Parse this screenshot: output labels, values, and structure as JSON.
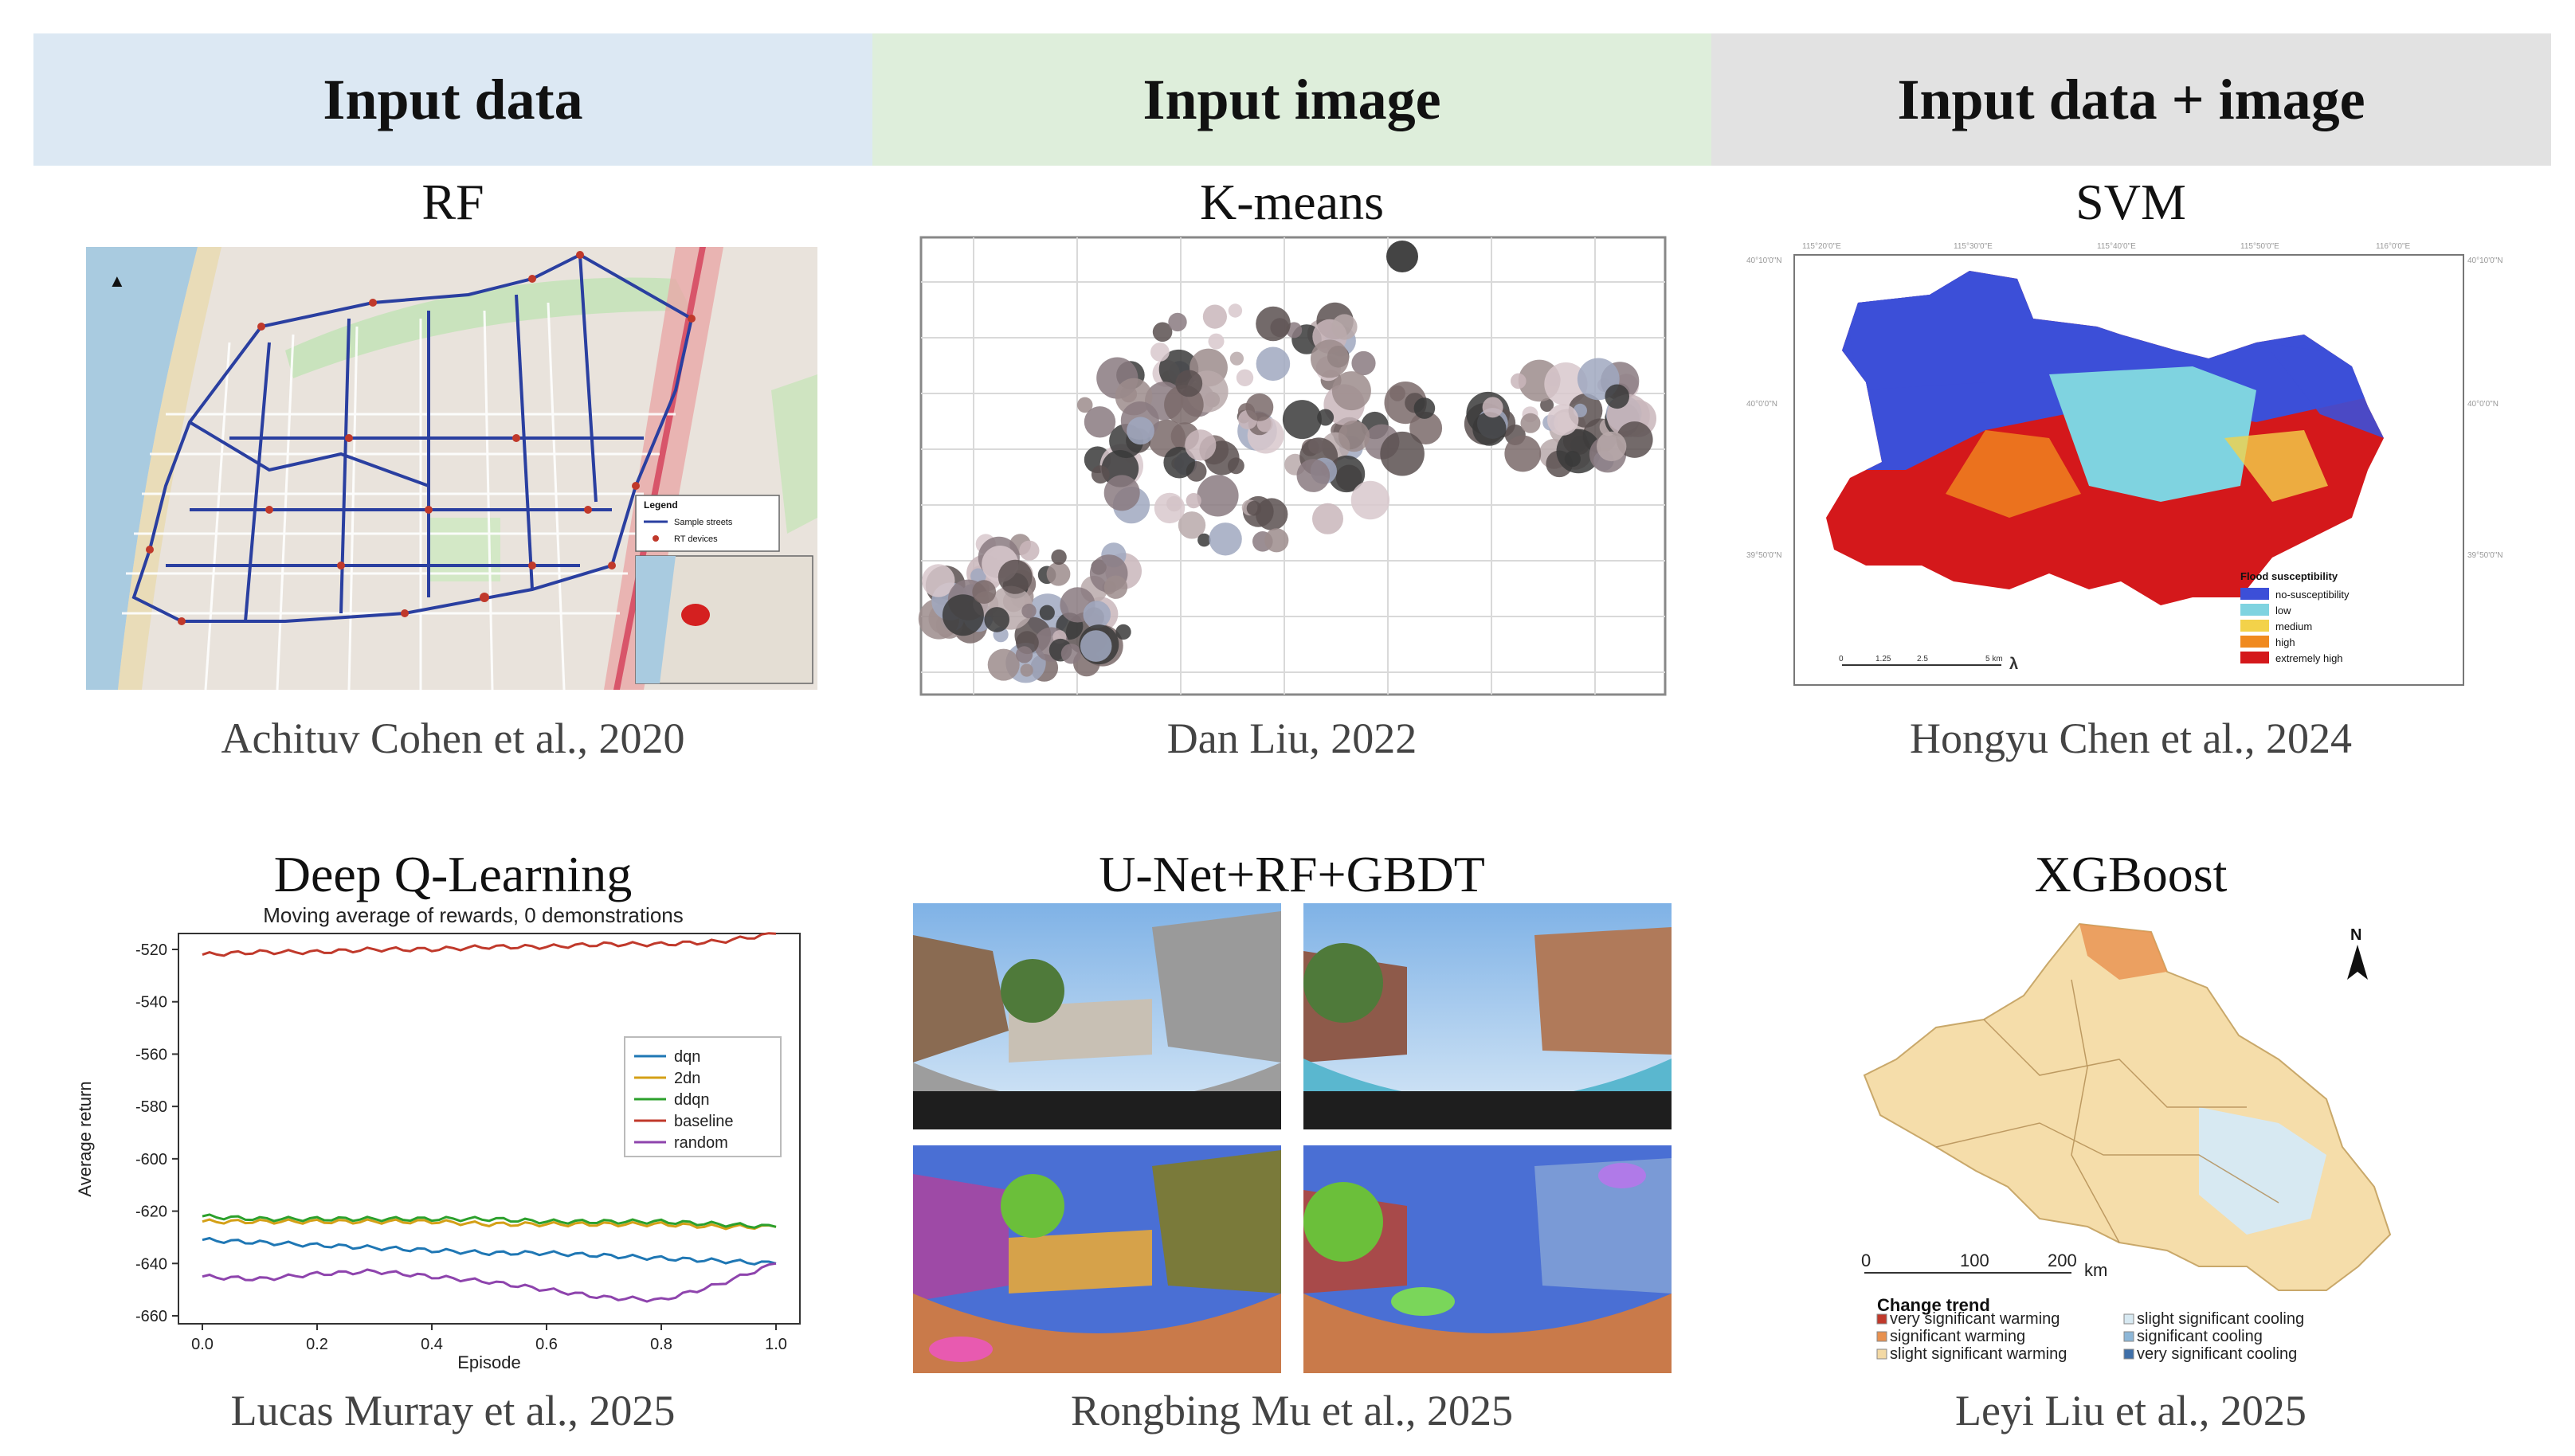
{
  "headers": [
    "Input data",
    "Input image",
    "Input data + image"
  ],
  "panels": [
    {
      "title": "RF",
      "citation": "Achituv Cohen et al., 2020",
      "legend": {
        "title": "Legend",
        "items": [
          "Sample streets",
          "RT devices"
        ]
      }
    },
    {
      "title": "K-means",
      "citation": "Dan Liu, 2022"
    },
    {
      "title": "SVM",
      "citation": "Hongyu Chen et al., 2024",
      "legend": {
        "title": "Flood susceptibility",
        "items": [
          "no-susceptibility",
          "low",
          "medium",
          "high",
          "extremely high"
        ],
        "colors": [
          "#3c4fd8",
          "#7fd3e0",
          "#f3d24a",
          "#f08a1f",
          "#d4181b"
        ]
      }
    },
    {
      "title": "Deep Q-Learning",
      "citation": "Lucas Murray et al., 2025"
    },
    {
      "title": "U-Net+RF+GBDT",
      "citation": "Rongbing Mu et al., 2025"
    },
    {
      "title": "XGBoost",
      "citation": "Leyi Liu et al., 2025",
      "scale": [
        "0",
        "100",
        "200",
        "km"
      ],
      "north": "N",
      "legend": {
        "title": "Change trend",
        "items": [
          "very significant warming",
          "significant warming",
          "slight significant warming",
          "slight significant cooling",
          "significant cooling",
          "very significant cooling"
        ],
        "colors": [
          "#c0392b",
          "#e8914f",
          "#f3d9a4",
          "#d7e9f2",
          "#8db7d8",
          "#3f6fa8"
        ]
      }
    }
  ],
  "chart_data": {
    "type": "line",
    "title": "Moving average of rewards, 0 demonstrations",
    "xlabel": "Episode",
    "ylabel": "Average return",
    "xlim": [
      0.0,
      1.0
    ],
    "ylim": [
      -660,
      -515
    ],
    "xticks": [
      "0.0",
      "0.2",
      "0.4",
      "0.6",
      "0.8",
      "1.0"
    ],
    "yticks": [
      "-520",
      "-540",
      "-560",
      "-580",
      "-600",
      "-620",
      "-640",
      "-660"
    ],
    "legend_position": "center-right",
    "x": [
      0.0,
      0.1,
      0.2,
      0.3,
      0.4,
      0.5,
      0.6,
      0.7,
      0.8,
      0.9,
      1.0
    ],
    "series": [
      {
        "name": "dqn",
        "color": "#1f77b4",
        "values": [
          -631,
          -632,
          -633,
          -634,
          -635,
          -636,
          -636,
          -637,
          -638,
          -639,
          -640
        ]
      },
      {
        "name": "2dn",
        "color": "#d4a017",
        "values": [
          -624,
          -624,
          -624,
          -624,
          -624,
          -625,
          -625,
          -625,
          -625,
          -626,
          -626
        ]
      },
      {
        "name": "ddqn",
        "color": "#2ca02c",
        "values": [
          -622,
          -623,
          -623,
          -623,
          -623,
          -623,
          -624,
          -624,
          -624,
          -625,
          -626
        ]
      },
      {
        "name": "baseline",
        "color": "#c0392b",
        "values": [
          -522,
          -521,
          -521,
          -520,
          -520,
          -519,
          -519,
          -518,
          -518,
          -517,
          -514
        ]
      },
      {
        "name": "random",
        "color": "#8e44ad",
        "values": [
          -645,
          -646,
          -644,
          -643,
          -645,
          -647,
          -650,
          -653,
          -654,
          -648,
          -640
        ]
      }
    ]
  }
}
